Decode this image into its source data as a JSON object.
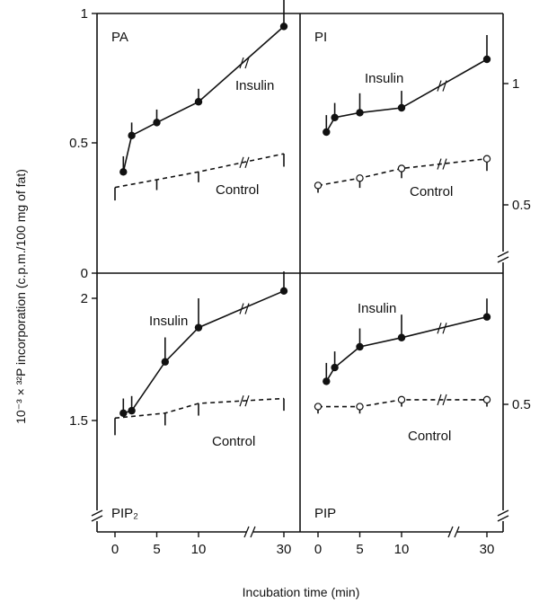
{
  "chart_data": {
    "type": "line",
    "ylabel": "10⁻³ × ³²P incorporation (c.p.m./100 mg of fat)",
    "xlabel": "Incubation time (min)",
    "x_ticks": [
      "0",
      "5",
      "10",
      "30"
    ],
    "left_ticks_top": [
      "1",
      "0.5",
      "0"
    ],
    "left_ticks_bottom": [
      "2",
      "1.5"
    ],
    "right_ticks_top": [
      "1",
      "0.5"
    ],
    "right_ticks_bottom": [
      "0.5"
    ],
    "panels": [
      {
        "label": "PA",
        "ylim": [
          0,
          1
        ],
        "series": [
          {
            "name": "Insulin",
            "style": "solid",
            "marker": "filled",
            "x": [
              1,
              2,
              5,
              10,
              30
            ],
            "y": [
              0.39,
              0.53,
              0.58,
              0.66,
              0.95
            ],
            "err": [
              0.06,
              0.05,
              0.05,
              0.05,
              0.12
            ]
          },
          {
            "name": "Control",
            "style": "dashed",
            "marker": "none",
            "x": [
              0,
              5,
              10,
              30
            ],
            "y": [
              0.33,
              0.36,
              0.39,
              0.46
            ],
            "err": [
              0.05,
              0.04,
              0.04,
              0.05
            ]
          }
        ]
      },
      {
        "label": "PI",
        "ylim": [
          0.25,
          1.22
        ],
        "series": [
          {
            "name": "Insulin",
            "style": "solid",
            "marker": "filled",
            "x": [
              1,
              2,
              5,
              10,
              30
            ],
            "y": [
              0.8,
              0.86,
              0.88,
              0.9,
              1.1
            ],
            "err": [
              0.07,
              0.06,
              0.08,
              0.07,
              0.1
            ]
          },
          {
            "name": "Control",
            "style": "dashed",
            "marker": "open",
            "x": [
              0,
              5,
              10,
              30
            ],
            "y": [
              0.58,
              0.61,
              0.65,
              0.69
            ],
            "err": [
              0.03,
              0.04,
              0.04,
              0.05
            ]
          }
        ]
      },
      {
        "label": "PIP₂",
        "ylim": [
          1.15,
          2.1
        ],
        "series": [
          {
            "name": "Insulin",
            "style": "solid",
            "marker": "filled",
            "x": [
              1,
              2,
              6,
              10,
              30
            ],
            "y": [
              1.53,
              1.54,
              1.74,
              1.88,
              2.03
            ],
            "err": [
              0.06,
              0.06,
              0.1,
              0.12,
              0.08
            ]
          },
          {
            "name": "Control",
            "style": "dashed",
            "marker": "none",
            "x": [
              0,
              6,
              10,
              30
            ],
            "y": [
              1.51,
              1.53,
              1.57,
              1.59
            ],
            "err": [
              0.07,
              0.05,
              0.05,
              0.05
            ]
          }
        ]
      },
      {
        "label": "PIP",
        "ylim": [
          0.25,
          1.03
        ],
        "series": [
          {
            "name": "Insulin",
            "style": "solid",
            "marker": "filled",
            "x": [
              1,
              2,
              5,
              10,
              30
            ],
            "y": [
              0.6,
              0.66,
              0.75,
              0.79,
              0.88
            ],
            "err": [
              0.08,
              0.07,
              0.08,
              0.1,
              0.08
            ]
          },
          {
            "name": "Control",
            "style": "dashed",
            "marker": "open",
            "x": [
              0,
              5,
              10,
              30
            ],
            "y": [
              0.49,
              0.49,
              0.52,
              0.52
            ],
            "err": [
              0.03,
              0.03,
              0.03,
              0.03
            ]
          }
        ]
      }
    ]
  }
}
